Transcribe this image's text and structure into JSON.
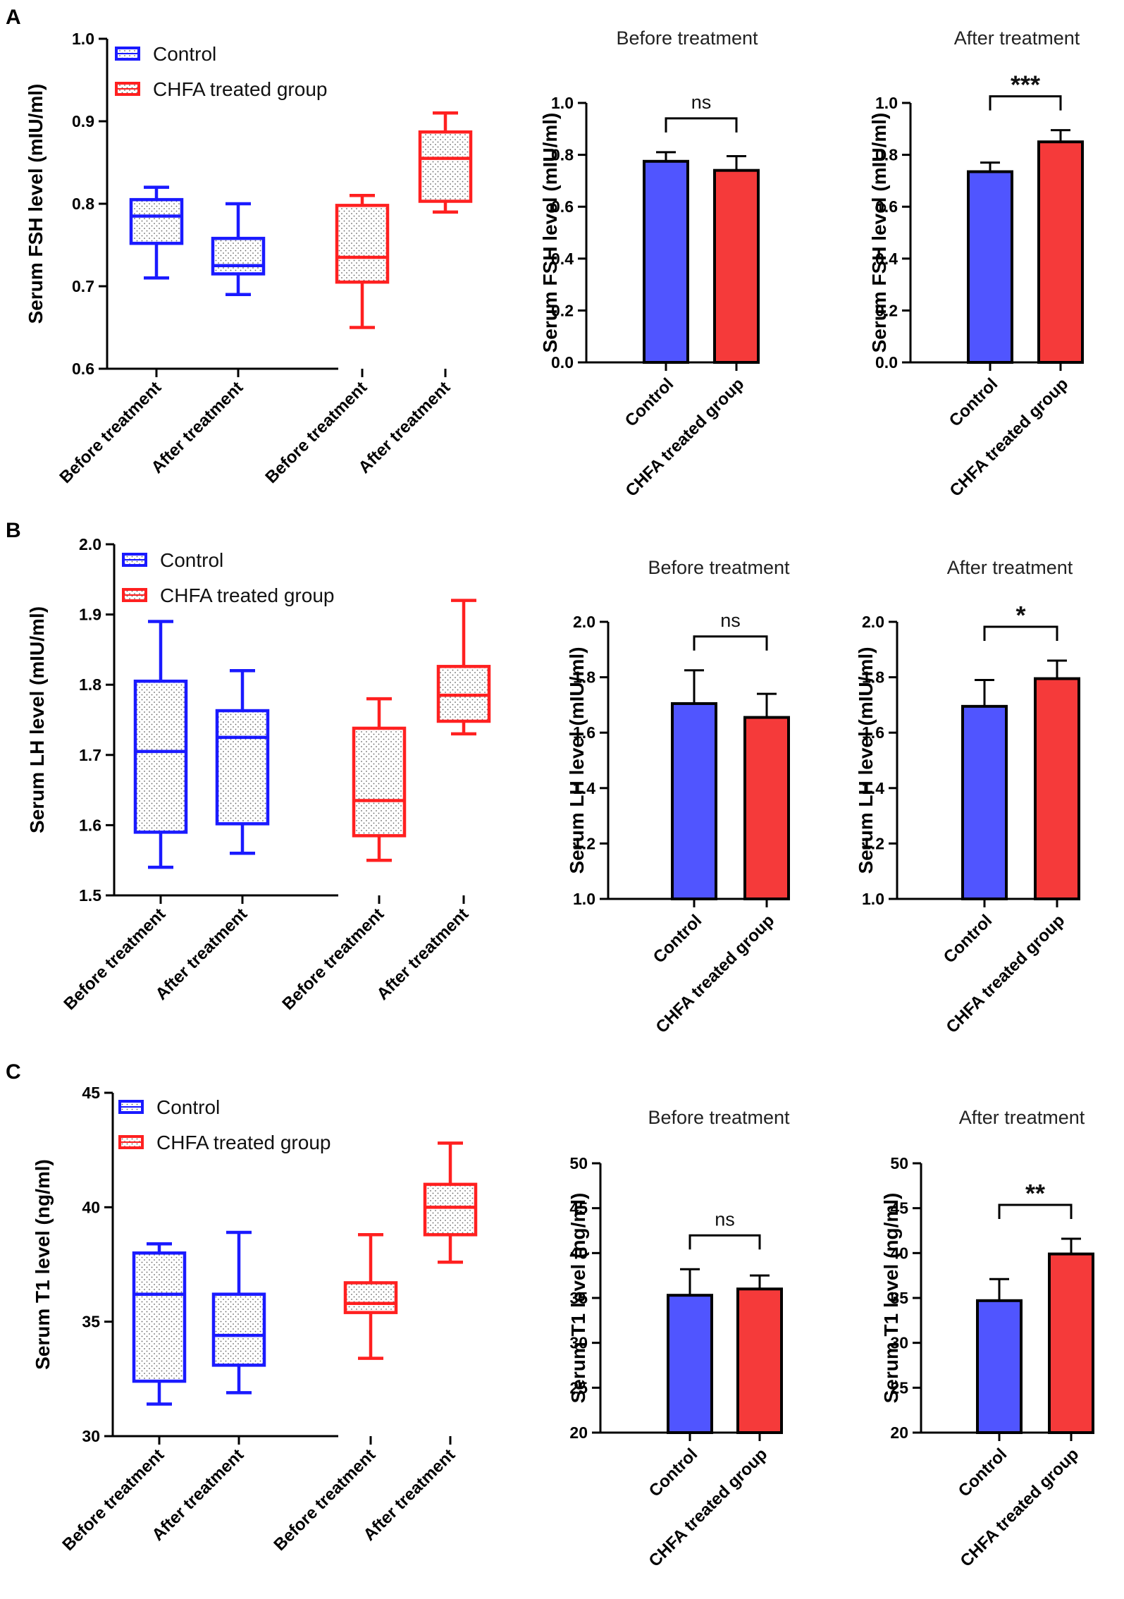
{
  "panel_labels": [
    "A",
    "B",
    "C"
  ],
  "colors": {
    "control": "#1a1aff",
    "chfa": "#ff2020",
    "bar_control": "#5055ff",
    "bar_chfa": "#f53a3a",
    "axis": "#000000"
  },
  "chart_data": [
    {
      "type": "box",
      "panel": "A",
      "title": "",
      "ylabel": "Serum FSH level (mIU/ml)",
      "ylim": [
        0.6,
        1.0
      ],
      "yticks": [
        "0.6",
        "0.7",
        "0.8",
        "0.9",
        "1.0"
      ],
      "yticks_values": [
        0.6,
        0.7,
        0.8,
        0.9,
        1.0
      ],
      "categories": [
        "Before treatment",
        "After treatment",
        "Before treatment",
        "After treatment"
      ],
      "legend": [
        "Control",
        "CHFA treated group"
      ],
      "boxes": [
        {
          "group": "Control",
          "min": 0.71,
          "q1": 0.752,
          "median": 0.785,
          "q3": 0.805,
          "max": 0.82
        },
        {
          "group": "Control",
          "min": 0.69,
          "q1": 0.715,
          "median": 0.725,
          "q3": 0.758,
          "max": 0.8
        },
        {
          "group": "CHFA treated group",
          "min": 0.65,
          "q1": 0.705,
          "median": 0.735,
          "q3": 0.798,
          "max": 0.81
        },
        {
          "group": "CHFA treated group",
          "min": 0.79,
          "q1": 0.803,
          "median": 0.855,
          "q3": 0.887,
          "max": 0.91
        }
      ]
    },
    {
      "type": "bar",
      "panel": "A",
      "title": "Before treatment",
      "ylabel": "Serum FSH level (mIU/ml)",
      "ylim": [
        0.0,
        1.0
      ],
      "yticks": [
        "0.0",
        "0.2",
        "0.4",
        "0.6",
        "0.8",
        "1.0"
      ],
      "yticks_values": [
        0.0,
        0.2,
        0.4,
        0.6,
        0.8,
        1.0
      ],
      "categories": [
        "Control",
        "CHFA treated group"
      ],
      "values": [
        0.775,
        0.74
      ],
      "errors": [
        0.035,
        0.055
      ],
      "significance": "ns"
    },
    {
      "type": "bar",
      "panel": "A",
      "title": "After treatment",
      "ylabel": "Serum FSH level (mIU/ml)",
      "ylim": [
        0.0,
        1.0
      ],
      "yticks": [
        "0.0",
        "0.2",
        "0.4",
        "0.6",
        "0.8",
        "1.0"
      ],
      "yticks_values": [
        0.0,
        0.2,
        0.4,
        0.6,
        0.8,
        1.0
      ],
      "categories": [
        "Control",
        "CHFA treated group"
      ],
      "values": [
        0.735,
        0.85
      ],
      "errors": [
        0.035,
        0.045
      ],
      "significance": "***"
    },
    {
      "type": "box",
      "panel": "B",
      "title": "",
      "ylabel": "Serum LH level (mIU/ml)",
      "ylim": [
        1.5,
        2.0
      ],
      "yticks": [
        "1.5",
        "1.6",
        "1.7",
        "1.8",
        "1.9",
        "2.0"
      ],
      "yticks_values": [
        1.5,
        1.6,
        1.7,
        1.8,
        1.9,
        2.0
      ],
      "categories": [
        "Before treatment",
        "After treatment",
        "Before treatment",
        "After treatment"
      ],
      "legend": [
        "Control",
        "CHFA treated group"
      ],
      "boxes": [
        {
          "group": "Control",
          "min": 1.54,
          "q1": 1.59,
          "median": 1.705,
          "q3": 1.805,
          "max": 1.89
        },
        {
          "group": "Control",
          "min": 1.56,
          "q1": 1.602,
          "median": 1.725,
          "q3": 1.763,
          "max": 1.82
        },
        {
          "group": "CHFA treated group",
          "min": 1.55,
          "q1": 1.585,
          "median": 1.635,
          "q3": 1.738,
          "max": 1.78
        },
        {
          "group": "CHFA treated group",
          "min": 1.73,
          "q1": 1.748,
          "median": 1.785,
          "q3": 1.826,
          "max": 1.92
        }
      ]
    },
    {
      "type": "bar",
      "panel": "B",
      "title": "Before treatment",
      "ylabel": "Serum LH level (mIU/ml)",
      "ylim": [
        1.0,
        2.0
      ],
      "yticks": [
        "1.0",
        "1.2",
        "1.4",
        "1.6",
        "1.8",
        "2.0"
      ],
      "yticks_values": [
        1.0,
        1.2,
        1.4,
        1.6,
        1.8,
        2.0
      ],
      "categories": [
        "Control",
        "CHFA treated group"
      ],
      "values": [
        1.705,
        1.655
      ],
      "errors": [
        0.12,
        0.085
      ],
      "significance": "ns"
    },
    {
      "type": "bar",
      "panel": "B",
      "title": "After treatment",
      "ylabel": "Serum LH level (mIU/ml)",
      "ylim": [
        1.0,
        2.0
      ],
      "yticks": [
        "1.0",
        "1.2",
        "1.4",
        "1.6",
        "1.8",
        "2.0"
      ],
      "yticks_values": [
        1.0,
        1.2,
        1.4,
        1.6,
        1.8,
        2.0
      ],
      "categories": [
        "Control",
        "CHFA treated group"
      ],
      "values": [
        1.695,
        1.795
      ],
      "errors": [
        0.095,
        0.065
      ],
      "significance": "*"
    },
    {
      "type": "box",
      "panel": "C",
      "title": "",
      "ylabel": "Serum T1 level (ng/ml)",
      "ylim": [
        30,
        45
      ],
      "yticks": [
        "30",
        "35",
        "40",
        "45"
      ],
      "yticks_values": [
        30,
        35,
        40,
        45
      ],
      "categories": [
        "Before treatment",
        "After treatment",
        "Before treatment",
        "After treatment"
      ],
      "legend": [
        "Control",
        "CHFA treated group"
      ],
      "boxes": [
        {
          "group": "Control",
          "min": 31.4,
          "q1": 32.4,
          "median": 36.2,
          "q3": 38.0,
          "max": 38.4
        },
        {
          "group": "Control",
          "min": 31.9,
          "q1": 33.1,
          "median": 34.4,
          "q3": 36.2,
          "max": 38.9
        },
        {
          "group": "CHFA treated group",
          "min": 33.4,
          "q1": 35.4,
          "median": 35.8,
          "q3": 36.7,
          "max": 38.8
        },
        {
          "group": "CHFA treated group",
          "min": 37.6,
          "q1": 38.8,
          "median": 40.0,
          "q3": 41.0,
          "max": 42.8
        }
      ]
    },
    {
      "type": "bar",
      "panel": "C",
      "title": "Before treatment",
      "ylabel": "Serum T1 level (ng/ml)",
      "ylim": [
        20,
        50
      ],
      "yticks": [
        "20",
        "25",
        "30",
        "35",
        "40",
        "45",
        "50"
      ],
      "yticks_values": [
        20,
        25,
        30,
        35,
        40,
        45,
        50
      ],
      "categories": [
        "Control",
        "CHFA treated group"
      ],
      "values": [
        35.3,
        36.0
      ],
      "errors": [
        2.9,
        1.5
      ],
      "significance": "ns"
    },
    {
      "type": "bar",
      "panel": "C",
      "title": "After treatment",
      "ylabel": "Serum T1 level (ng/ml)",
      "ylim": [
        20,
        50
      ],
      "yticks": [
        "20",
        "25",
        "30",
        "35",
        "40",
        "45",
        "50"
      ],
      "yticks_values": [
        20,
        25,
        30,
        35,
        40,
        45,
        50
      ],
      "categories": [
        "Control",
        "CHFA treated group"
      ],
      "values": [
        34.7,
        39.9
      ],
      "errors": [
        2.4,
        1.7
      ],
      "significance": "**"
    }
  ]
}
